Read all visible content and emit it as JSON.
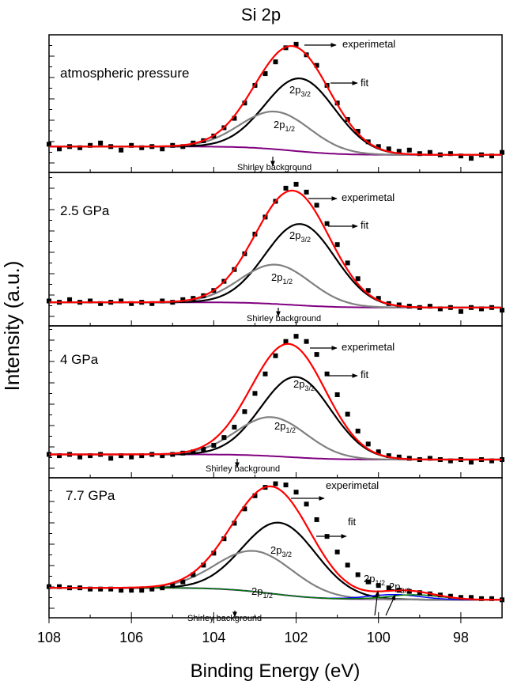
{
  "chart_data": {
    "type": "line",
    "title": "Si 2p",
    "xlabel": "Binding Energy (eV)",
    "ylabel": "Intensity (a.u.)",
    "xlim": [
      108,
      97
    ],
    "x_reversed": true,
    "x_ticks": [
      "108",
      "106",
      "104",
      "102",
      "100",
      "98"
    ],
    "y_tick_labels": false,
    "grid": false,
    "colors": {
      "experimental": "#000000",
      "fit": "#ff0000",
      "p32": "#000000",
      "p12": "#808080",
      "shirley": "#800080",
      "extra_p12": "#0000ff",
      "extra_p32": "#008000"
    },
    "x_step": 0.25,
    "panels": [
      {
        "label": "atmospheric pressure",
        "experimental": [
          0.12,
          0.08,
          0.1,
          0.09,
          0.11,
          0.13,
          0.1,
          0.07,
          0.11,
          0.09,
          0.1,
          0.08,
          0.11,
          0.1,
          0.13,
          0.15,
          0.19,
          0.26,
          0.34,
          0.47,
          0.62,
          0.72,
          0.82,
          0.94,
          0.97,
          0.88,
          0.79,
          0.62,
          0.47,
          0.33,
          0.23,
          0.14,
          0.1,
          0.08,
          0.06,
          0.07,
          0.04,
          0.05,
          0.03,
          0.04,
          0.02,
          0,
          0.03,
          0.02,
          0.05
        ],
        "components": [
          {
            "name": "2p3/2",
            "center": 101.9,
            "height": 0.62,
            "fwhm": 2.0,
            "color": "p32"
          },
          {
            "name": "2p1/2",
            "center": 102.5,
            "height": 0.32,
            "fwhm": 2.0,
            "color": "p12"
          }
        ],
        "shirley": {
          "high": 0.1,
          "low": 0.03
        },
        "annotations": {
          "experimental": "experimetal",
          "fit": "fit",
          "p32": "2p",
          "p32_sub": "3/2",
          "p12": "2p",
          "p12_sub": "1/2",
          "shirley": "Shirley background"
        }
      },
      {
        "label": "2.5 GPa",
        "experimental": [
          0.07,
          0.06,
          0.08,
          0.06,
          0.07,
          0.05,
          0.06,
          0.07,
          0.05,
          0.06,
          0.05,
          0.07,
          0.06,
          0.08,
          0.09,
          0.11,
          0.15,
          0.22,
          0.31,
          0.43,
          0.58,
          0.71,
          0.83,
          0.93,
          0.96,
          0.9,
          0.8,
          0.66,
          0.5,
          0.36,
          0.24,
          0.15,
          0.09,
          0.05,
          0.04,
          0.03,
          0.02,
          0.03,
          0.01,
          0.02,
          -0.01,
          0.02,
          0.01,
          0.02,
          0
        ],
        "components": [
          {
            "name": "2p3/2",
            "center": 101.9,
            "height": 0.62,
            "fwhm": 2.0,
            "color": "p32"
          },
          {
            "name": "2p1/2",
            "center": 102.5,
            "height": 0.3,
            "fwhm": 2.0,
            "color": "p12"
          }
        ],
        "shirley": {
          "high": 0.06,
          "low": 0.02
        },
        "annotations": {
          "experimental": "experimetal",
          "fit": "fit",
          "p32": "2p",
          "p32_sub": "3/2",
          "p12": "2p",
          "p12_sub": "1/2",
          "shirley": "Shirley background"
        }
      },
      {
        "label": "4 GPa",
        "experimental": [
          0.06,
          0.05,
          0.06,
          0.04,
          0.05,
          0.06,
          0.03,
          0.05,
          0.04,
          0.05,
          0.06,
          0.05,
          0.06,
          0.07,
          0.08,
          0.1,
          0.13,
          0.19,
          0.27,
          0.39,
          0.53,
          0.68,
          0.82,
          0.93,
          0.97,
          0.93,
          0.83,
          0.68,
          0.52,
          0.37,
          0.24,
          0.14,
          0.08,
          0.05,
          0.04,
          0.03,
          0.02,
          0.03,
          0.02,
          0.01,
          0.02,
          0,
          0.02,
          0.01,
          0.02
        ],
        "components": [
          {
            "name": "2p3/2",
            "center": 102.0,
            "height": 0.62,
            "fwhm": 2.0,
            "color": "p32"
          },
          {
            "name": "2p1/2",
            "center": 102.6,
            "height": 0.3,
            "fwhm": 2.0,
            "color": "p12"
          }
        ],
        "shirley": {
          "high": 0.06,
          "low": 0.02
        },
        "annotations": {
          "experimental": "experimetal",
          "fit": "fit",
          "p32": "2p",
          "p32_sub": "3/2",
          "p12": "2p",
          "p12_sub": "1/2",
          "shirley": "Shirley background"
        }
      },
      {
        "label": "7.7 GPa",
        "experimental": [
          0.14,
          0.14,
          0.13,
          0.13,
          0.12,
          0.12,
          0.12,
          0.11,
          0.11,
          0.11,
          0.12,
          0.13,
          0.15,
          0.18,
          0.24,
          0.32,
          0.42,
          0.54,
          0.67,
          0.79,
          0.9,
          0.97,
          1.0,
          0.99,
          0.93,
          0.83,
          0.7,
          0.56,
          0.43,
          0.32,
          0.24,
          0.18,
          0.15,
          0.13,
          0.11,
          0.1,
          0.09,
          0.08,
          0.07,
          0.06,
          0.05,
          0.05,
          0.04,
          0.04,
          0.03
        ],
        "components": [
          {
            "name": "2p3/2",
            "center": 102.4,
            "height": 0.6,
            "fwhm": 2.1,
            "color": "p32"
          },
          {
            "name": "2p1/2",
            "center": 103.0,
            "height": 0.34,
            "fwhm": 2.2,
            "color": "p12"
          },
          {
            "name": "2p1/2",
            "center": 99.6,
            "height": 0.04,
            "fwhm": 1.5,
            "color": "extra_p12"
          },
          {
            "name": "2p3/2",
            "center": 99.1,
            "height": 0.04,
            "fwhm": 1.5,
            "color": "extra_p32"
          }
        ],
        "shirley": {
          "high": 0.13,
          "low": 0.03
        },
        "annotations": {
          "experimental": "experimetal",
          "fit": "fit",
          "p32": "2p",
          "p32_sub": "3/2",
          "p12": "2p",
          "p12_sub": "1/2",
          "shirley": "Shirley background",
          "extra_p12": "2p",
          "extra_p12_sub": "1/2",
          "extra_p32": "2p",
          "extra_p32_sub": "3/2"
        }
      }
    ]
  }
}
